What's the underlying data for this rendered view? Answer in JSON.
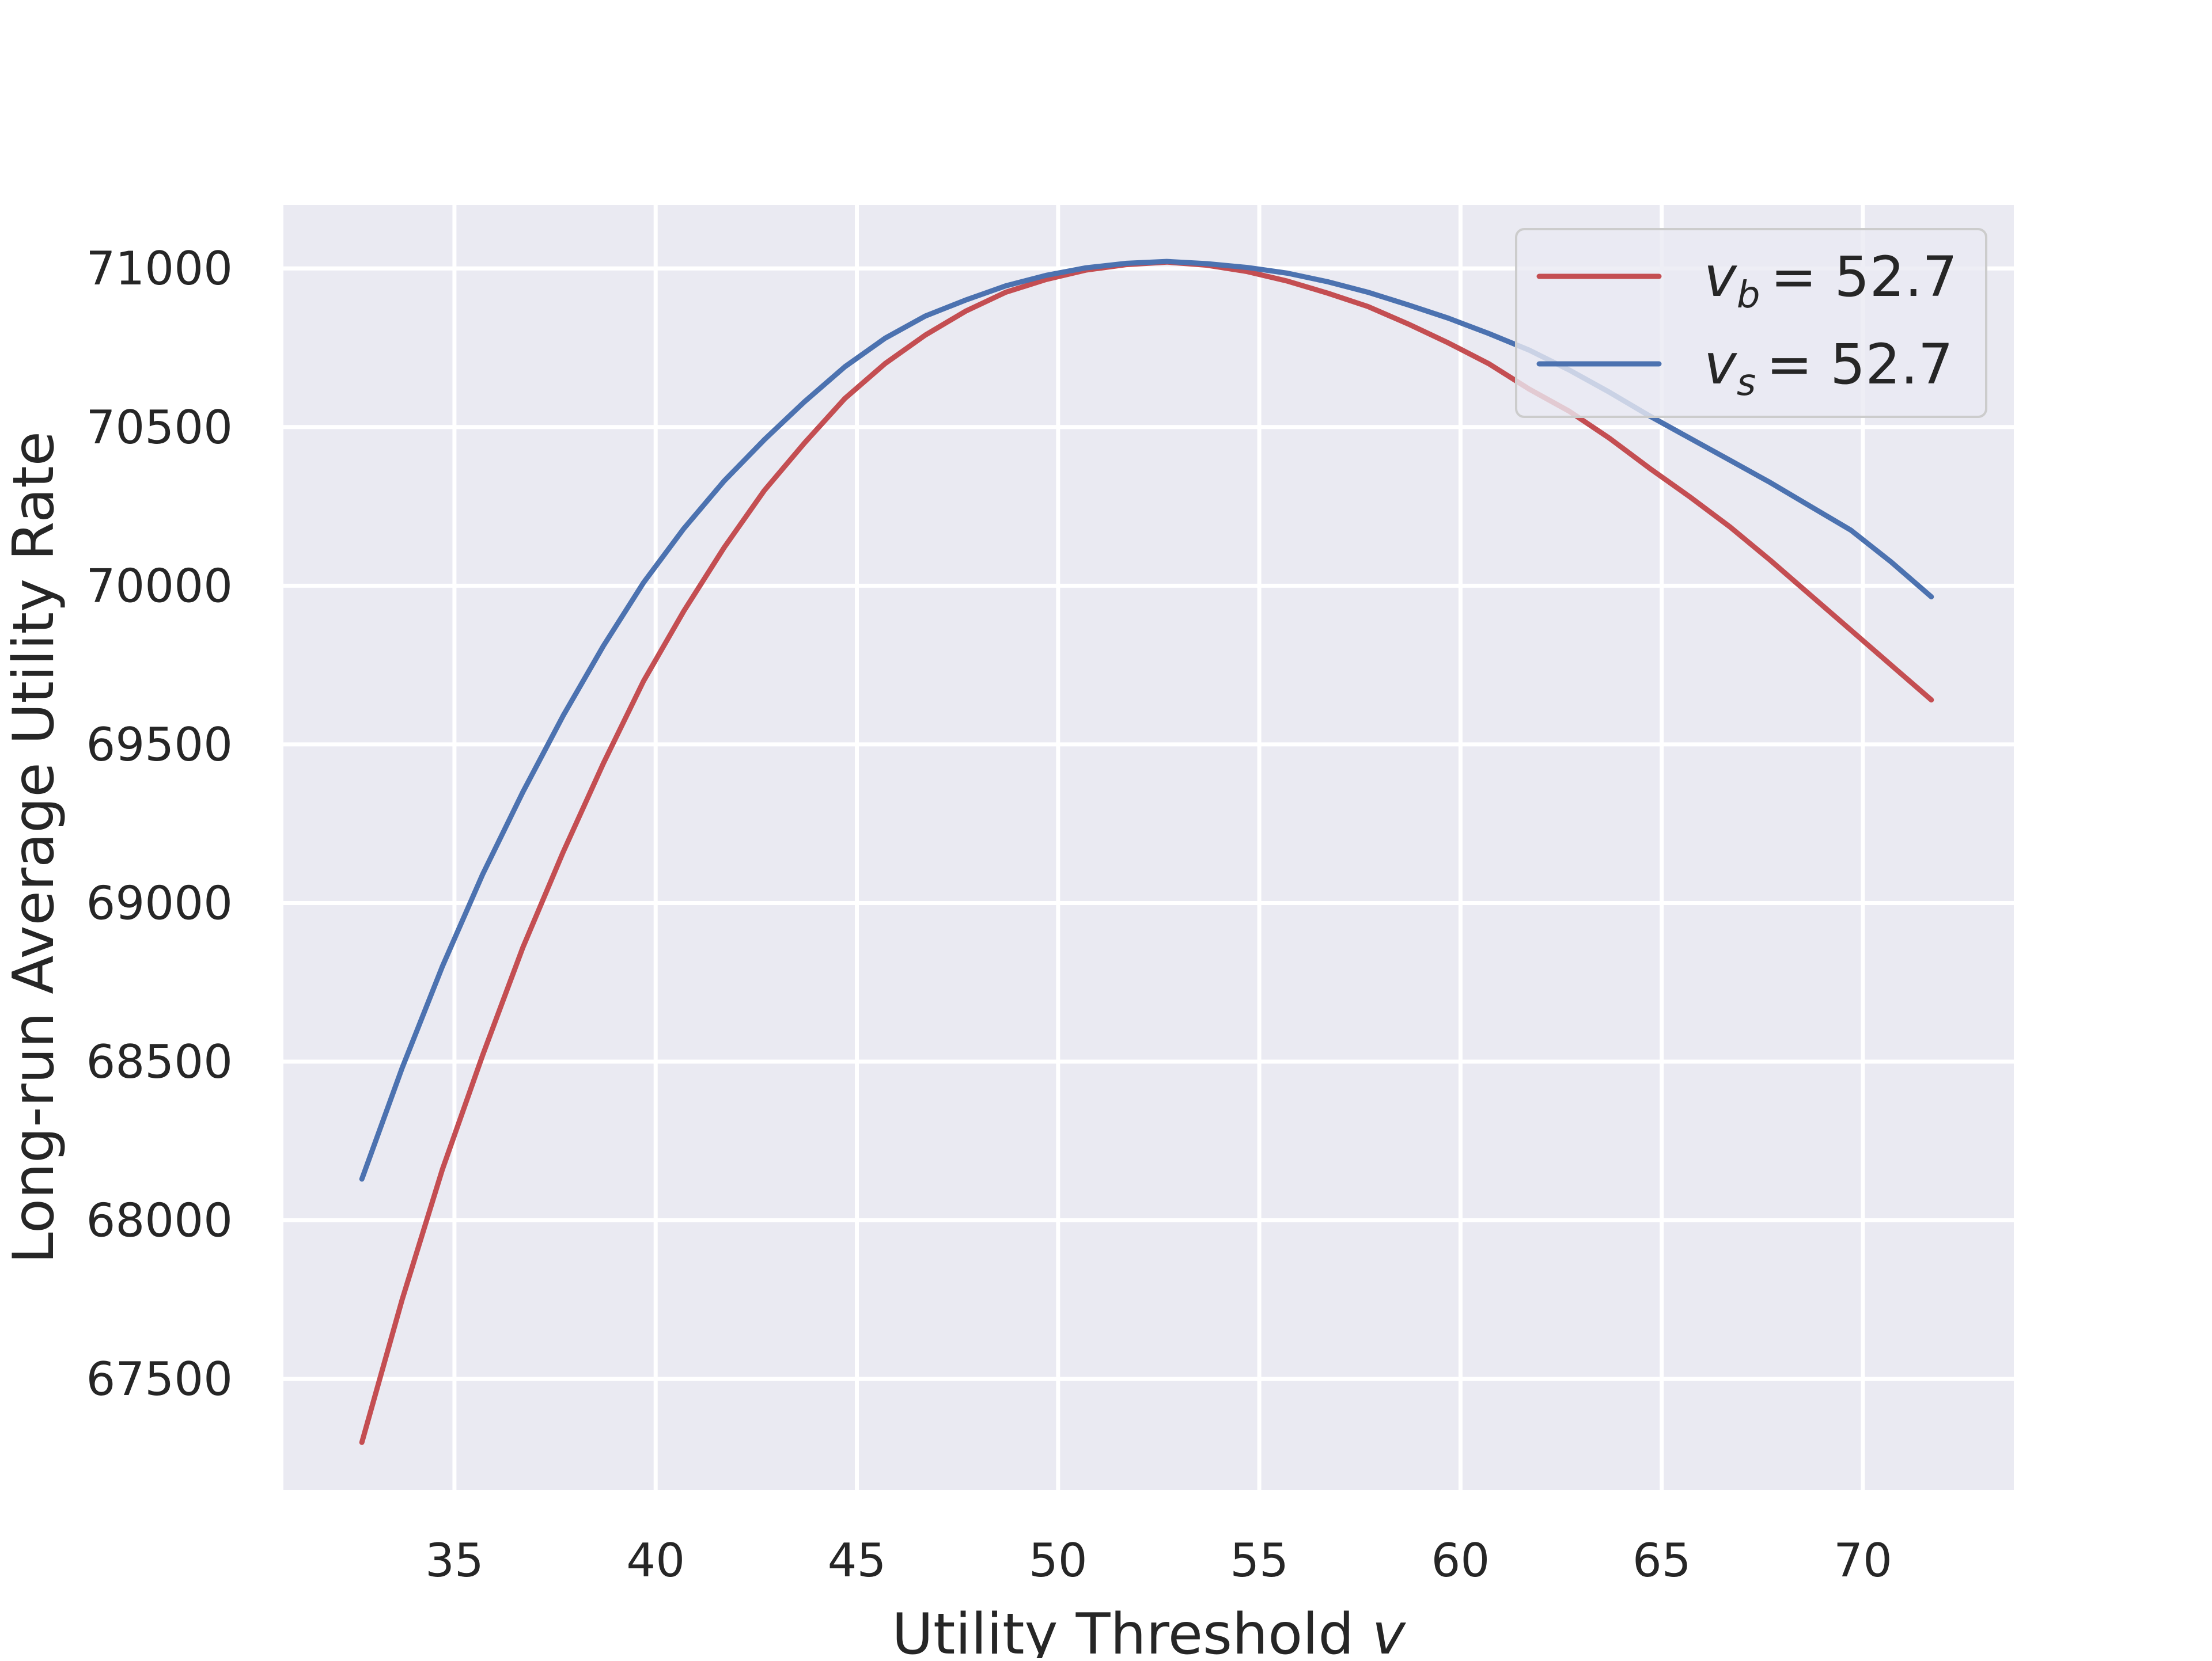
{
  "chart_data": {
    "type": "line",
    "xlabel": "Utility Threshold",
    "xlabel_var": "v",
    "ylabel": "Long-run Average Utility Rate",
    "xlim": [
      30.75,
      73.75
    ],
    "ylim": [
      67150,
      71200
    ],
    "xticks": [
      35,
      40,
      45,
      50,
      55,
      60,
      65,
      70
    ],
    "yticks": [
      67500,
      68000,
      68500,
      69000,
      69500,
      70000,
      70500,
      71000
    ],
    "grid": true,
    "legend_position": "top-right",
    "series": [
      {
        "name": "v_b = 52.7",
        "legend_var": "v",
        "legend_sub": "b",
        "legend_value": "= 52.7",
        "color": "#c44e52",
        "x": [
          32.7,
          33.7,
          34.7,
          35.7,
          36.7,
          37.7,
          38.7,
          39.7,
          40.7,
          41.7,
          42.7,
          43.7,
          44.7,
          45.7,
          46.7,
          47.7,
          48.7,
          49.7,
          50.7,
          51.7,
          52.7,
          53.7,
          54.7,
          55.7,
          56.7,
          57.7,
          58.7,
          59.7,
          60.7,
          61.7,
          62.7,
          63.7,
          64.7,
          65.7,
          66.7,
          67.7,
          68.7,
          69.7,
          70.7,
          71.7
        ],
        "y": [
          67300,
          67750,
          68160,
          68520,
          68860,
          69160,
          69440,
          69700,
          69920,
          70120,
          70300,
          70450,
          70590,
          70700,
          70790,
          70865,
          70925,
          70965,
          70995,
          71012,
          71020,
          71010,
          70990,
          70960,
          70922,
          70880,
          70825,
          70765,
          70700,
          70620,
          70550,
          70465,
          70370,
          70280,
          70185,
          70080,
          69970,
          69860,
          69750,
          69640
        ]
      },
      {
        "name": "v_s = 52.7",
        "legend_var": "v",
        "legend_sub": "s",
        "legend_value": "= 52.7",
        "color": "#4c72b0",
        "x": [
          32.7,
          33.7,
          34.7,
          35.7,
          36.7,
          37.7,
          38.7,
          39.7,
          40.7,
          41.7,
          42.7,
          43.7,
          44.7,
          45.7,
          46.7,
          47.7,
          48.7,
          49.7,
          50.7,
          51.7,
          52.7,
          53.7,
          54.7,
          55.7,
          56.7,
          57.7,
          58.7,
          59.7,
          60.7,
          61.7,
          62.7,
          63.7,
          64.7,
          65.7,
          66.7,
          67.7,
          68.7,
          69.7,
          70.7,
          71.7
        ],
        "y": [
          68130,
          68480,
          68800,
          69090,
          69350,
          69590,
          69810,
          70010,
          70180,
          70330,
          70460,
          70580,
          70690,
          70780,
          70850,
          70900,
          70945,
          70978,
          71002,
          71016,
          71022,
          71015,
          71003,
          70985,
          70958,
          70925,
          70885,
          70843,
          70795,
          70743,
          70680,
          70610,
          70535,
          70465,
          70395,
          70325,
          70250,
          70175,
          70075,
          69965
        ]
      }
    ]
  }
}
